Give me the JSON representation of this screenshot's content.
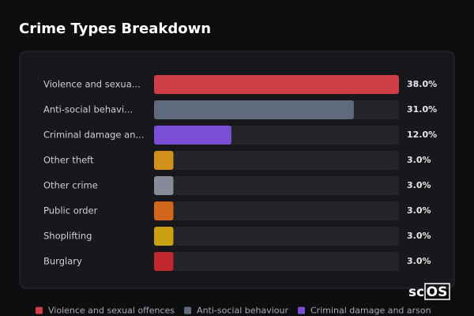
{
  "chart_data": {
    "type": "bar",
    "orientation": "horizontal",
    "title": "Crime Types Breakdown",
    "categories": [
      "Violence and sexua...",
      "Anti-social behavi...",
      "Criminal damage an...",
      "Other theft",
      "Other crime",
      "Public order",
      "Shoplifting",
      "Burglary"
    ],
    "values": [
      38,
      31,
      12,
      3,
      3,
      3,
      3,
      3
    ],
    "value_labels": [
      "38.0%",
      "31.0%",
      "12.0%",
      "3.0%",
      "3.0%",
      "3.0%",
      "3.0%",
      "3.0%"
    ],
    "colors": [
      "#cf3e44",
      "#5f6b7c",
      "#7a4fd6",
      "#d18f1c",
      "#858b98",
      "#d2661d",
      "#caa013",
      "#c0282e"
    ],
    "xlim": [
      0,
      38
    ],
    "legend": [
      {
        "name": "Violence and sexual offences",
        "color": "#cf3e44"
      },
      {
        "name": "Anti-social behaviour",
        "color": "#5f6b7c"
      },
      {
        "name": "Criminal damage and arson",
        "color": "#7a4fd6"
      }
    ]
  },
  "logo": {
    "prefix": "sc",
    "boxed": "OS"
  }
}
